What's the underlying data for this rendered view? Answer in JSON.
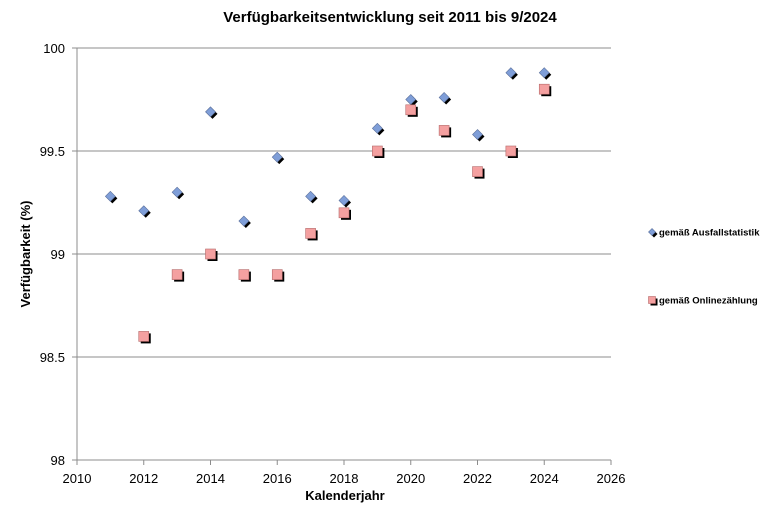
{
  "chart_data": {
    "type": "scatter",
    "title": "Verfügbarkeitsentwicklung seit 2011 bis 9/2024",
    "xlabel": "Kalenderjahr",
    "ylabel": "Verfügbarkeit (%)",
    "xlim": [
      2010,
      2026
    ],
    "ylim": [
      98,
      100
    ],
    "xticks": [
      "2010",
      "2012",
      "2014",
      "2016",
      "2018",
      "2020",
      "2022",
      "2024",
      "2026"
    ],
    "yticks": [
      "98",
      "98.5",
      "99",
      "99.5",
      "100"
    ],
    "grid": "horizontal",
    "legend_position": "right",
    "series": [
      {
        "name": "gemäß Ausfallstatistik",
        "marker": "diamond",
        "color": "#7f9ed8",
        "points": [
          {
            "x": 2011,
            "y": 99.28
          },
          {
            "x": 2012,
            "y": 99.21
          },
          {
            "x": 2013,
            "y": 99.3
          },
          {
            "x": 2014,
            "y": 99.69
          },
          {
            "x": 2015,
            "y": 99.16
          },
          {
            "x": 2016,
            "y": 99.47
          },
          {
            "x": 2017,
            "y": 99.28
          },
          {
            "x": 2018,
            "y": 99.26
          },
          {
            "x": 2019,
            "y": 99.61
          },
          {
            "x": 2020,
            "y": 99.75
          },
          {
            "x": 2021,
            "y": 99.76
          },
          {
            "x": 2022,
            "y": 99.58
          },
          {
            "x": 2023,
            "y": 99.88
          },
          {
            "x": 2024,
            "y": 99.88
          }
        ]
      },
      {
        "name": "gemäß Onlinezählung",
        "marker": "square",
        "color": "#f4a0a0",
        "points": [
          {
            "x": 2012,
            "y": 98.6
          },
          {
            "x": 2013,
            "y": 98.9
          },
          {
            "x": 2014,
            "y": 99.0
          },
          {
            "x": 2015,
            "y": 98.9
          },
          {
            "x": 2016,
            "y": 98.9
          },
          {
            "x": 2017,
            "y": 99.1
          },
          {
            "x": 2018,
            "y": 99.2
          },
          {
            "x": 2019,
            "y": 99.5
          },
          {
            "x": 2020,
            "y": 99.7
          },
          {
            "x": 2021,
            "y": 99.6
          },
          {
            "x": 2022,
            "y": 99.4
          },
          {
            "x": 2023,
            "y": 99.5
          },
          {
            "x": 2024,
            "y": 99.8
          }
        ]
      }
    ]
  }
}
